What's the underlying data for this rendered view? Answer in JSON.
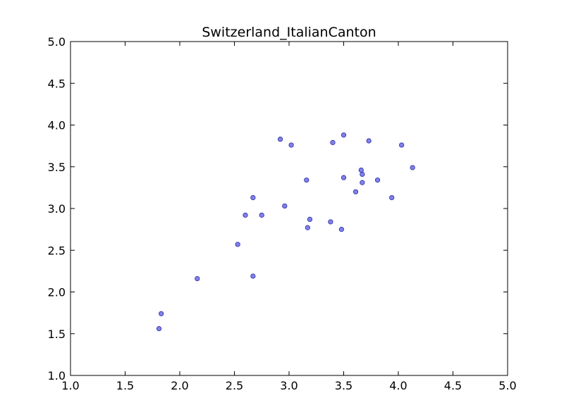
{
  "chart_data": {
    "type": "scatter",
    "title": "Switzerland_ItalianCanton",
    "xlabel": "",
    "ylabel": "",
    "xlim": [
      1.0,
      5.0
    ],
    "ylim": [
      1.0,
      5.0
    ],
    "xticks": [
      "1.0",
      "1.5",
      "2.0",
      "2.5",
      "3.0",
      "3.5",
      "4.0",
      "4.5",
      "5.0"
    ],
    "yticks": [
      "1.0",
      "1.5",
      "2.0",
      "2.5",
      "3.0",
      "3.5",
      "4.0",
      "4.5",
      "5.0"
    ],
    "grid": false,
    "legend": "none",
    "marker_color": "#6b6be8",
    "marker_edge_color": "#2a2aa0",
    "points": [
      {
        "x": 1.81,
        "y": 1.56
      },
      {
        "x": 1.83,
        "y": 1.74
      },
      {
        "x": 2.16,
        "y": 2.16
      },
      {
        "x": 2.53,
        "y": 2.57
      },
      {
        "x": 2.6,
        "y": 2.92
      },
      {
        "x": 2.67,
        "y": 3.13
      },
      {
        "x": 2.67,
        "y": 2.19
      },
      {
        "x": 2.75,
        "y": 2.92
      },
      {
        "x": 2.92,
        "y": 3.83
      },
      {
        "x": 2.96,
        "y": 3.03
      },
      {
        "x": 3.02,
        "y": 3.76
      },
      {
        "x": 3.16,
        "y": 3.34
      },
      {
        "x": 3.17,
        "y": 2.77
      },
      {
        "x": 3.19,
        "y": 2.87
      },
      {
        "x": 3.38,
        "y": 2.84
      },
      {
        "x": 3.4,
        "y": 3.79
      },
      {
        "x": 3.48,
        "y": 2.75
      },
      {
        "x": 3.5,
        "y": 3.88
      },
      {
        "x": 3.5,
        "y": 3.37
      },
      {
        "x": 3.61,
        "y": 3.2
      },
      {
        "x": 3.66,
        "y": 3.46
      },
      {
        "x": 3.67,
        "y": 3.41
      },
      {
        "x": 3.67,
        "y": 3.31
      },
      {
        "x": 3.73,
        "y": 3.81
      },
      {
        "x": 3.81,
        "y": 3.34
      },
      {
        "x": 3.94,
        "y": 3.13
      },
      {
        "x": 4.03,
        "y": 3.76
      },
      {
        "x": 4.13,
        "y": 3.49
      }
    ]
  }
}
